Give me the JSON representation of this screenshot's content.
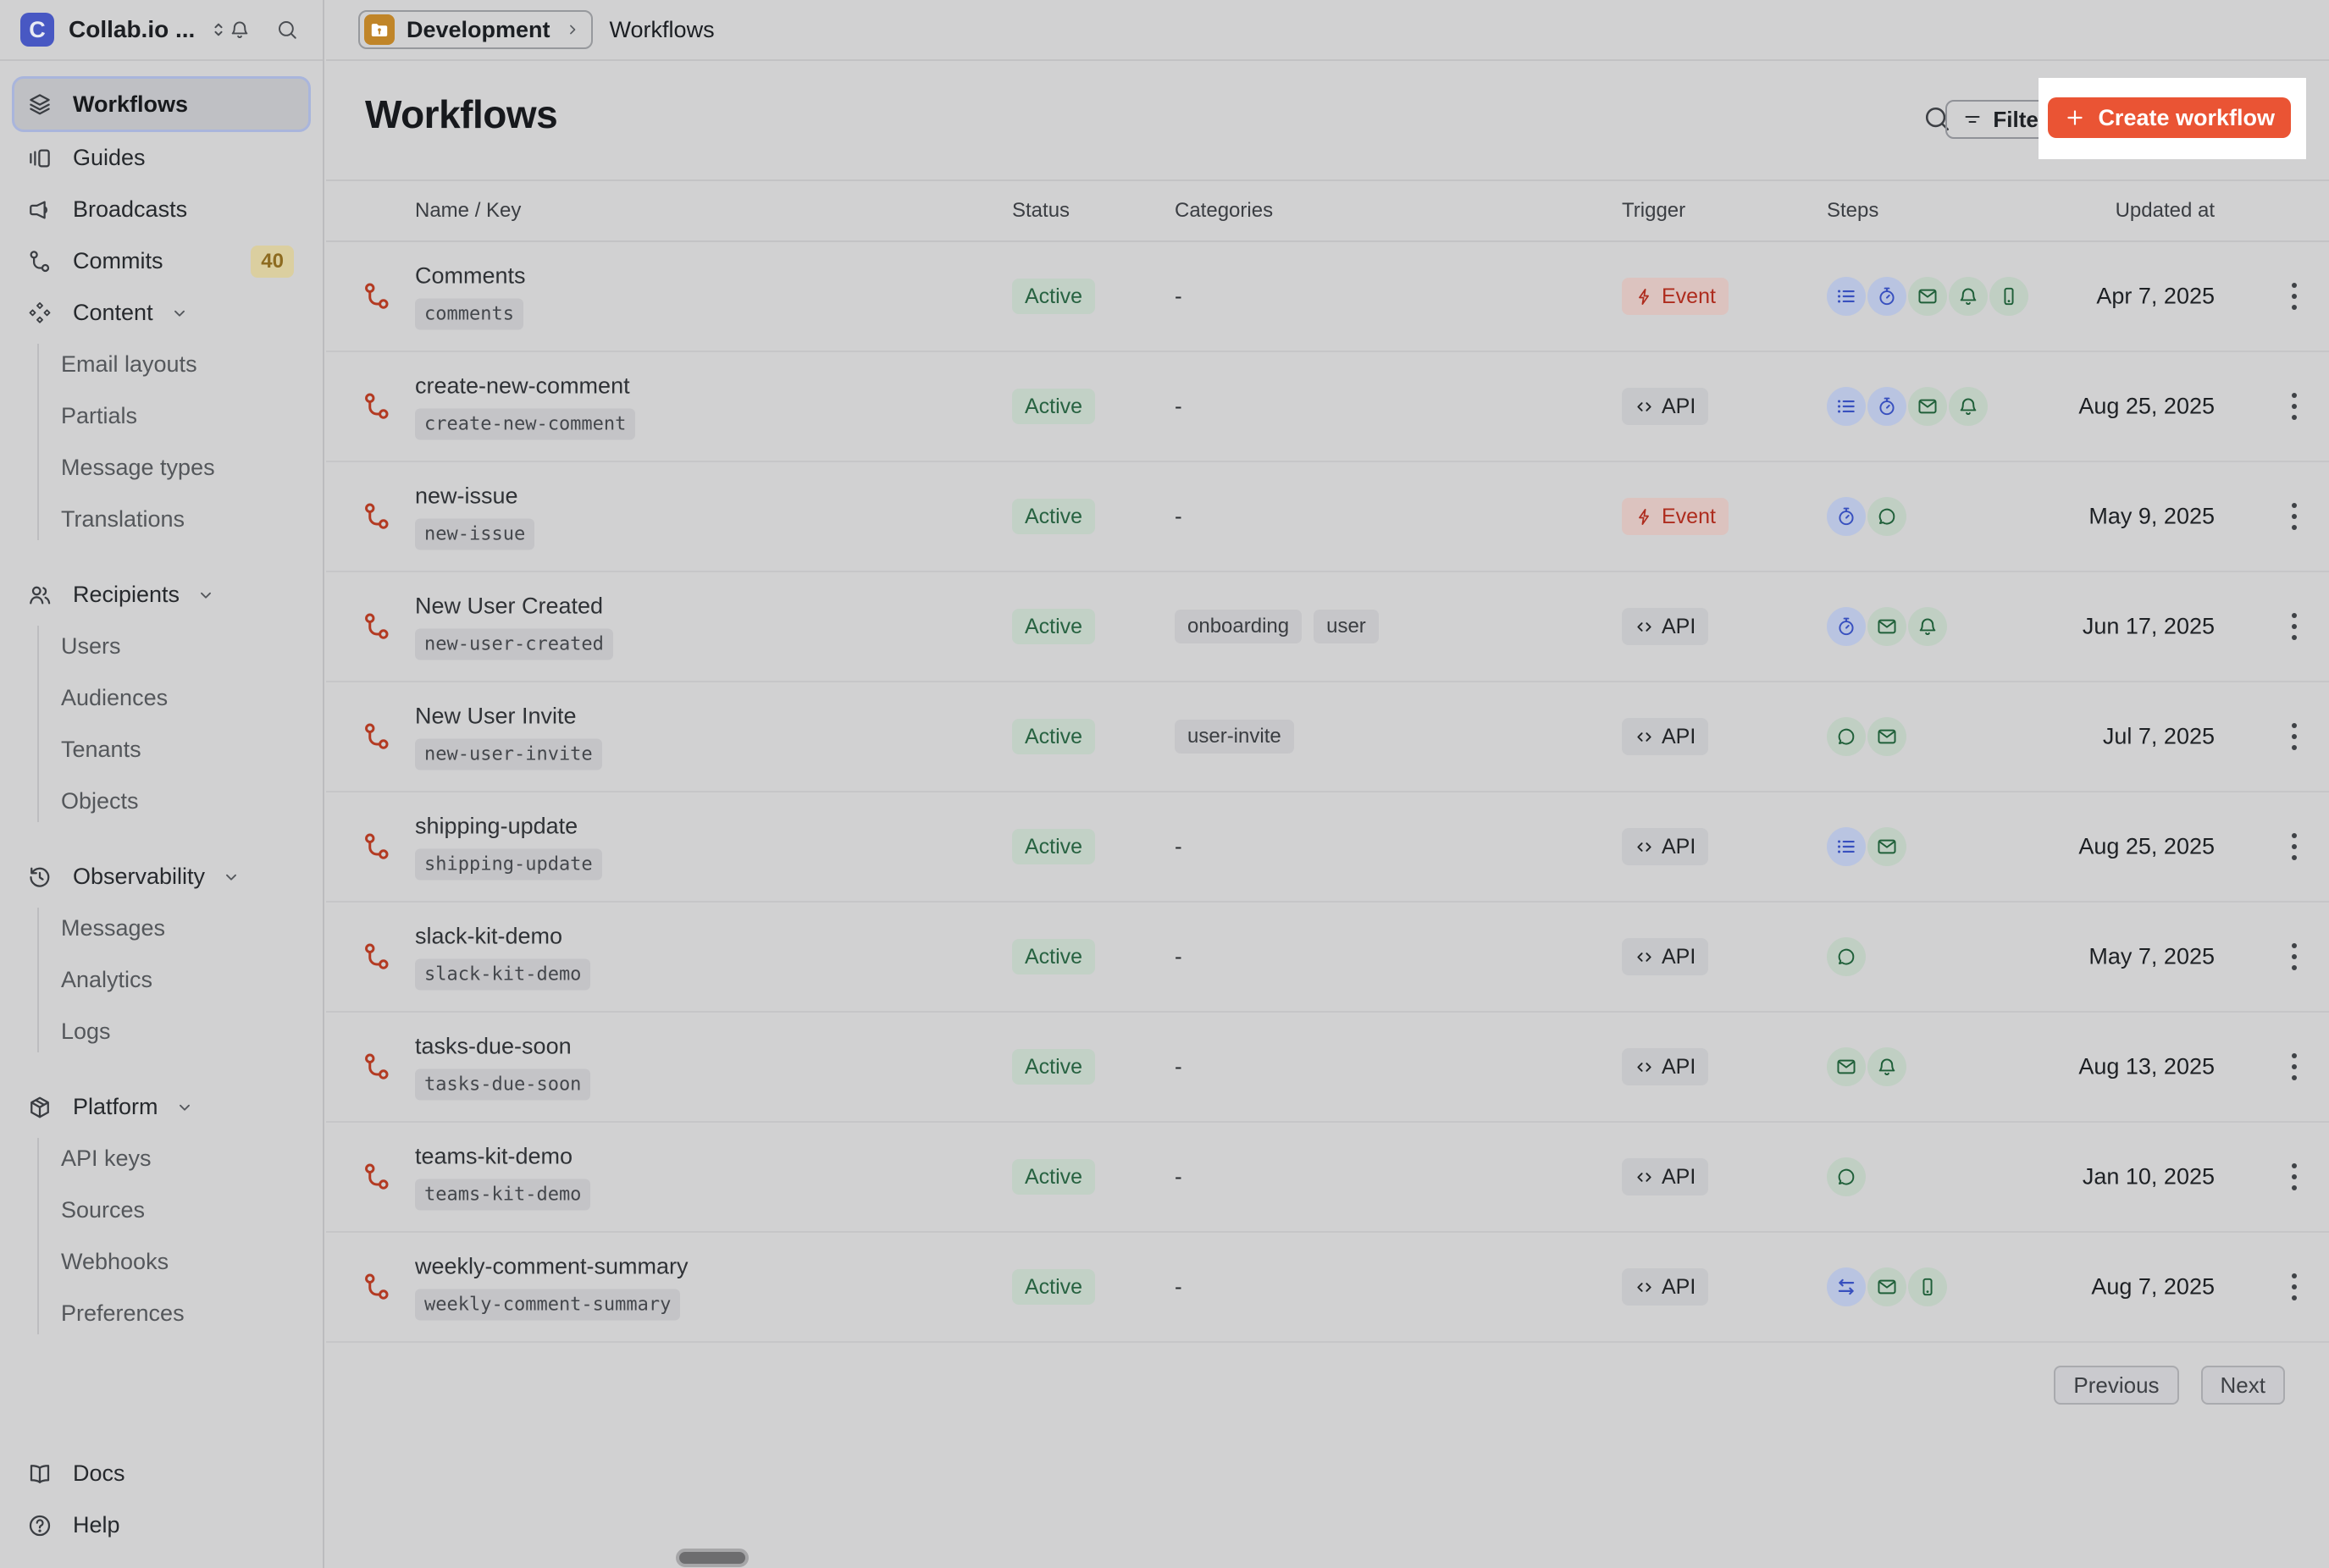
{
  "colors": {
    "accent_button": "#ea5434",
    "spotlight": "#ffffff",
    "logo_blue": "#4858c3",
    "environment_amber": "#c08529",
    "status_active_text": "#276241",
    "event_red": "#ae2c1e",
    "step_blue": "#3850bf",
    "step_green": "#1f5f39",
    "commits_badge_bg": "#dbcfa0"
  },
  "sidebar": {
    "workspace": {
      "initial": "C",
      "name": "Collab.io ..."
    },
    "items": [
      {
        "label": "Workflows",
        "icon": "layers-icon",
        "selected": true
      },
      {
        "label": "Guides",
        "icon": "guides-icon"
      },
      {
        "label": "Broadcasts",
        "icon": "megaphone-icon"
      },
      {
        "label": "Commits",
        "icon": "commit-icon",
        "badge": "40"
      },
      {
        "label": "Content",
        "icon": "diamonds-icon",
        "expanded": true,
        "children": [
          "Email layouts",
          "Partials",
          "Message types",
          "Translations"
        ]
      },
      {
        "label": "Recipients",
        "icon": "people-icon",
        "expanded": true,
        "children": [
          "Users",
          "Audiences",
          "Tenants",
          "Objects"
        ]
      },
      {
        "label": "Observability",
        "icon": "history-icon",
        "expanded": true,
        "children": [
          "Messages",
          "Analytics",
          "Logs"
        ]
      },
      {
        "label": "Platform",
        "icon": "box-icon",
        "expanded": true,
        "children": [
          "API keys",
          "Sources",
          "Webhooks",
          "Preferences"
        ]
      }
    ],
    "footer_items": [
      {
        "label": "Docs",
        "icon": "book-icon"
      },
      {
        "label": "Help",
        "icon": "help-icon"
      }
    ]
  },
  "topbar": {
    "environment": "Development",
    "page": "Workflows"
  },
  "header": {
    "title": "Workflows",
    "filter_label": "Filter",
    "create_label": "Create workflow"
  },
  "table": {
    "columns": [
      "Name / Key",
      "Status",
      "Categories",
      "Trigger",
      "Steps",
      "Updated at"
    ],
    "empty_category": "-",
    "rows": [
      {
        "name": "Comments",
        "key": "comments",
        "status": "Active",
        "categories": [],
        "trigger": {
          "type": "event",
          "label": "Event",
          "icon": "lightning-icon"
        },
        "steps": [
          {
            "icon": "list-icon",
            "color": "blue"
          },
          {
            "icon": "stopwatch-icon",
            "color": "blue"
          },
          {
            "icon": "envelope-icon",
            "color": "green"
          },
          {
            "icon": "bell-icon",
            "color": "green"
          },
          {
            "icon": "phone-icon",
            "color": "green"
          }
        ],
        "updated_at": "Apr 7, 2025"
      },
      {
        "name": "create-new-comment",
        "key": "create-new-comment",
        "status": "Active",
        "categories": [],
        "trigger": {
          "type": "api",
          "label": "API",
          "icon": "code-icon"
        },
        "steps": [
          {
            "icon": "list-icon",
            "color": "blue"
          },
          {
            "icon": "stopwatch-icon",
            "color": "blue"
          },
          {
            "icon": "envelope-icon",
            "color": "green"
          },
          {
            "icon": "bell-icon",
            "color": "green"
          }
        ],
        "updated_at": "Aug 25, 2025"
      },
      {
        "name": "new-issue",
        "key": "new-issue",
        "status": "Active",
        "categories": [],
        "trigger": {
          "type": "event",
          "label": "Event",
          "icon": "lightning-icon"
        },
        "steps": [
          {
            "icon": "stopwatch-icon",
            "color": "blue"
          },
          {
            "icon": "chat-icon",
            "color": "green"
          }
        ],
        "updated_at": "May 9, 2025"
      },
      {
        "name": "New User Created",
        "key": "new-user-created",
        "status": "Active",
        "categories": [
          "onboarding",
          "user"
        ],
        "trigger": {
          "type": "api",
          "label": "API",
          "icon": "code-icon"
        },
        "steps": [
          {
            "icon": "stopwatch-icon",
            "color": "blue"
          },
          {
            "icon": "envelope-icon",
            "color": "green"
          },
          {
            "icon": "bell-icon",
            "color": "green"
          }
        ],
        "updated_at": "Jun 17, 2025"
      },
      {
        "name": "New User Invite",
        "key": "new-user-invite",
        "status": "Active",
        "categories": [
          "user-invite"
        ],
        "trigger": {
          "type": "api",
          "label": "API",
          "icon": "code-icon"
        },
        "steps": [
          {
            "icon": "chat-icon",
            "color": "green"
          },
          {
            "icon": "envelope-icon",
            "color": "green"
          }
        ],
        "updated_at": "Jul 7, 2025"
      },
      {
        "name": "shipping-update",
        "key": "shipping-update",
        "status": "Active",
        "categories": [],
        "trigger": {
          "type": "api",
          "label": "API",
          "icon": "code-icon"
        },
        "steps": [
          {
            "icon": "list-icon",
            "color": "blue"
          },
          {
            "icon": "envelope-icon",
            "color": "green"
          }
        ],
        "updated_at": "Aug 25, 2025"
      },
      {
        "name": "slack-kit-demo",
        "key": "slack-kit-demo",
        "status": "Active",
        "categories": [],
        "trigger": {
          "type": "api",
          "label": "API",
          "icon": "code-icon"
        },
        "steps": [
          {
            "icon": "chat-icon",
            "color": "green"
          }
        ],
        "updated_at": "May 7, 2025"
      },
      {
        "name": "tasks-due-soon",
        "key": "tasks-due-soon",
        "status": "Active",
        "categories": [],
        "trigger": {
          "type": "api",
          "label": "API",
          "icon": "code-icon"
        },
        "steps": [
          {
            "icon": "envelope-icon",
            "color": "green"
          },
          {
            "icon": "bell-icon",
            "color": "green"
          }
        ],
        "updated_at": "Aug 13, 2025"
      },
      {
        "name": "teams-kit-demo",
        "key": "teams-kit-demo",
        "status": "Active",
        "categories": [],
        "trigger": {
          "type": "api",
          "label": "API",
          "icon": "code-icon"
        },
        "steps": [
          {
            "icon": "chat-icon",
            "color": "green"
          }
        ],
        "updated_at": "Jan 10, 2025"
      },
      {
        "name": "weekly-comment-summary",
        "key": "weekly-comment-summary",
        "status": "Active",
        "categories": [],
        "trigger": {
          "type": "api",
          "label": "API",
          "icon": "code-icon"
        },
        "steps": [
          {
            "icon": "swap-arrows-icon",
            "color": "blue"
          },
          {
            "icon": "envelope-icon",
            "color": "green"
          },
          {
            "icon": "phone-icon",
            "color": "green"
          }
        ],
        "updated_at": "Aug 7, 2025"
      }
    ]
  },
  "pagination": {
    "previous": "Previous",
    "next": "Next"
  }
}
